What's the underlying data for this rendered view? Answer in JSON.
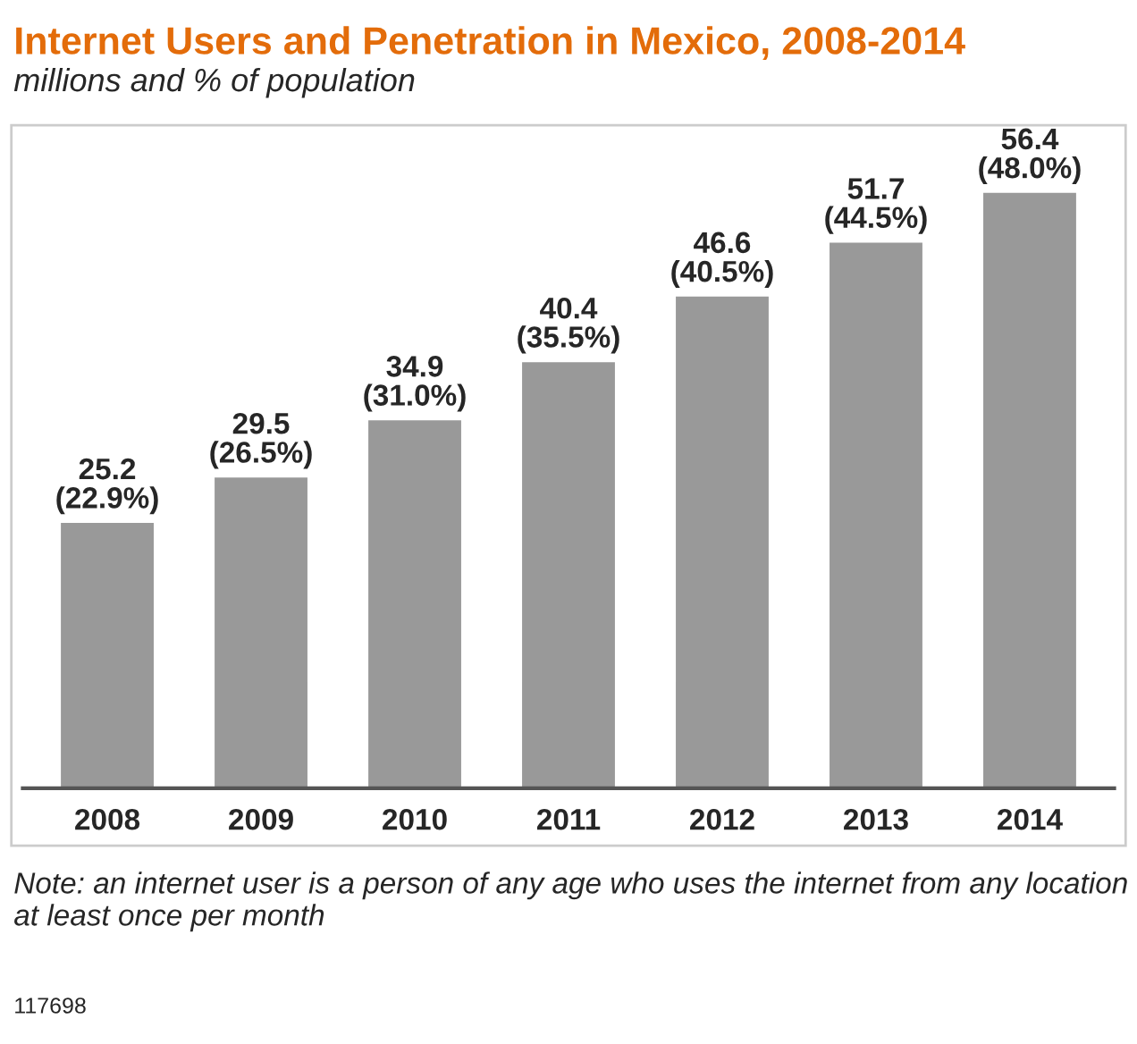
{
  "chart_data": {
    "type": "bar",
    "title": "Internet Users and Penetration in Mexico, 2008-2014",
    "subtitle": "millions and % of population",
    "categories": [
      "2008",
      "2009",
      "2010",
      "2011",
      "2012",
      "2013",
      "2014"
    ],
    "values": [
      25.2,
      29.5,
      34.9,
      40.4,
      46.6,
      51.7,
      56.4
    ],
    "value_labels": [
      "25.2\n(22.9%)",
      "29.5\n(26.5%)",
      "34.9\n(31.0%)",
      "40.4\n(35.5%)",
      "46.6\n(40.5%)",
      "51.7\n(44.5%)",
      "56.4\n(48.0%)"
    ],
    "color": "#999999",
    "tick_labels": "x",
    "grid": false,
    "annotations": [
      "Note: an internet user is a person of any age who uses the internet from any location at least once per month",
      "117698"
    ]
  }
}
